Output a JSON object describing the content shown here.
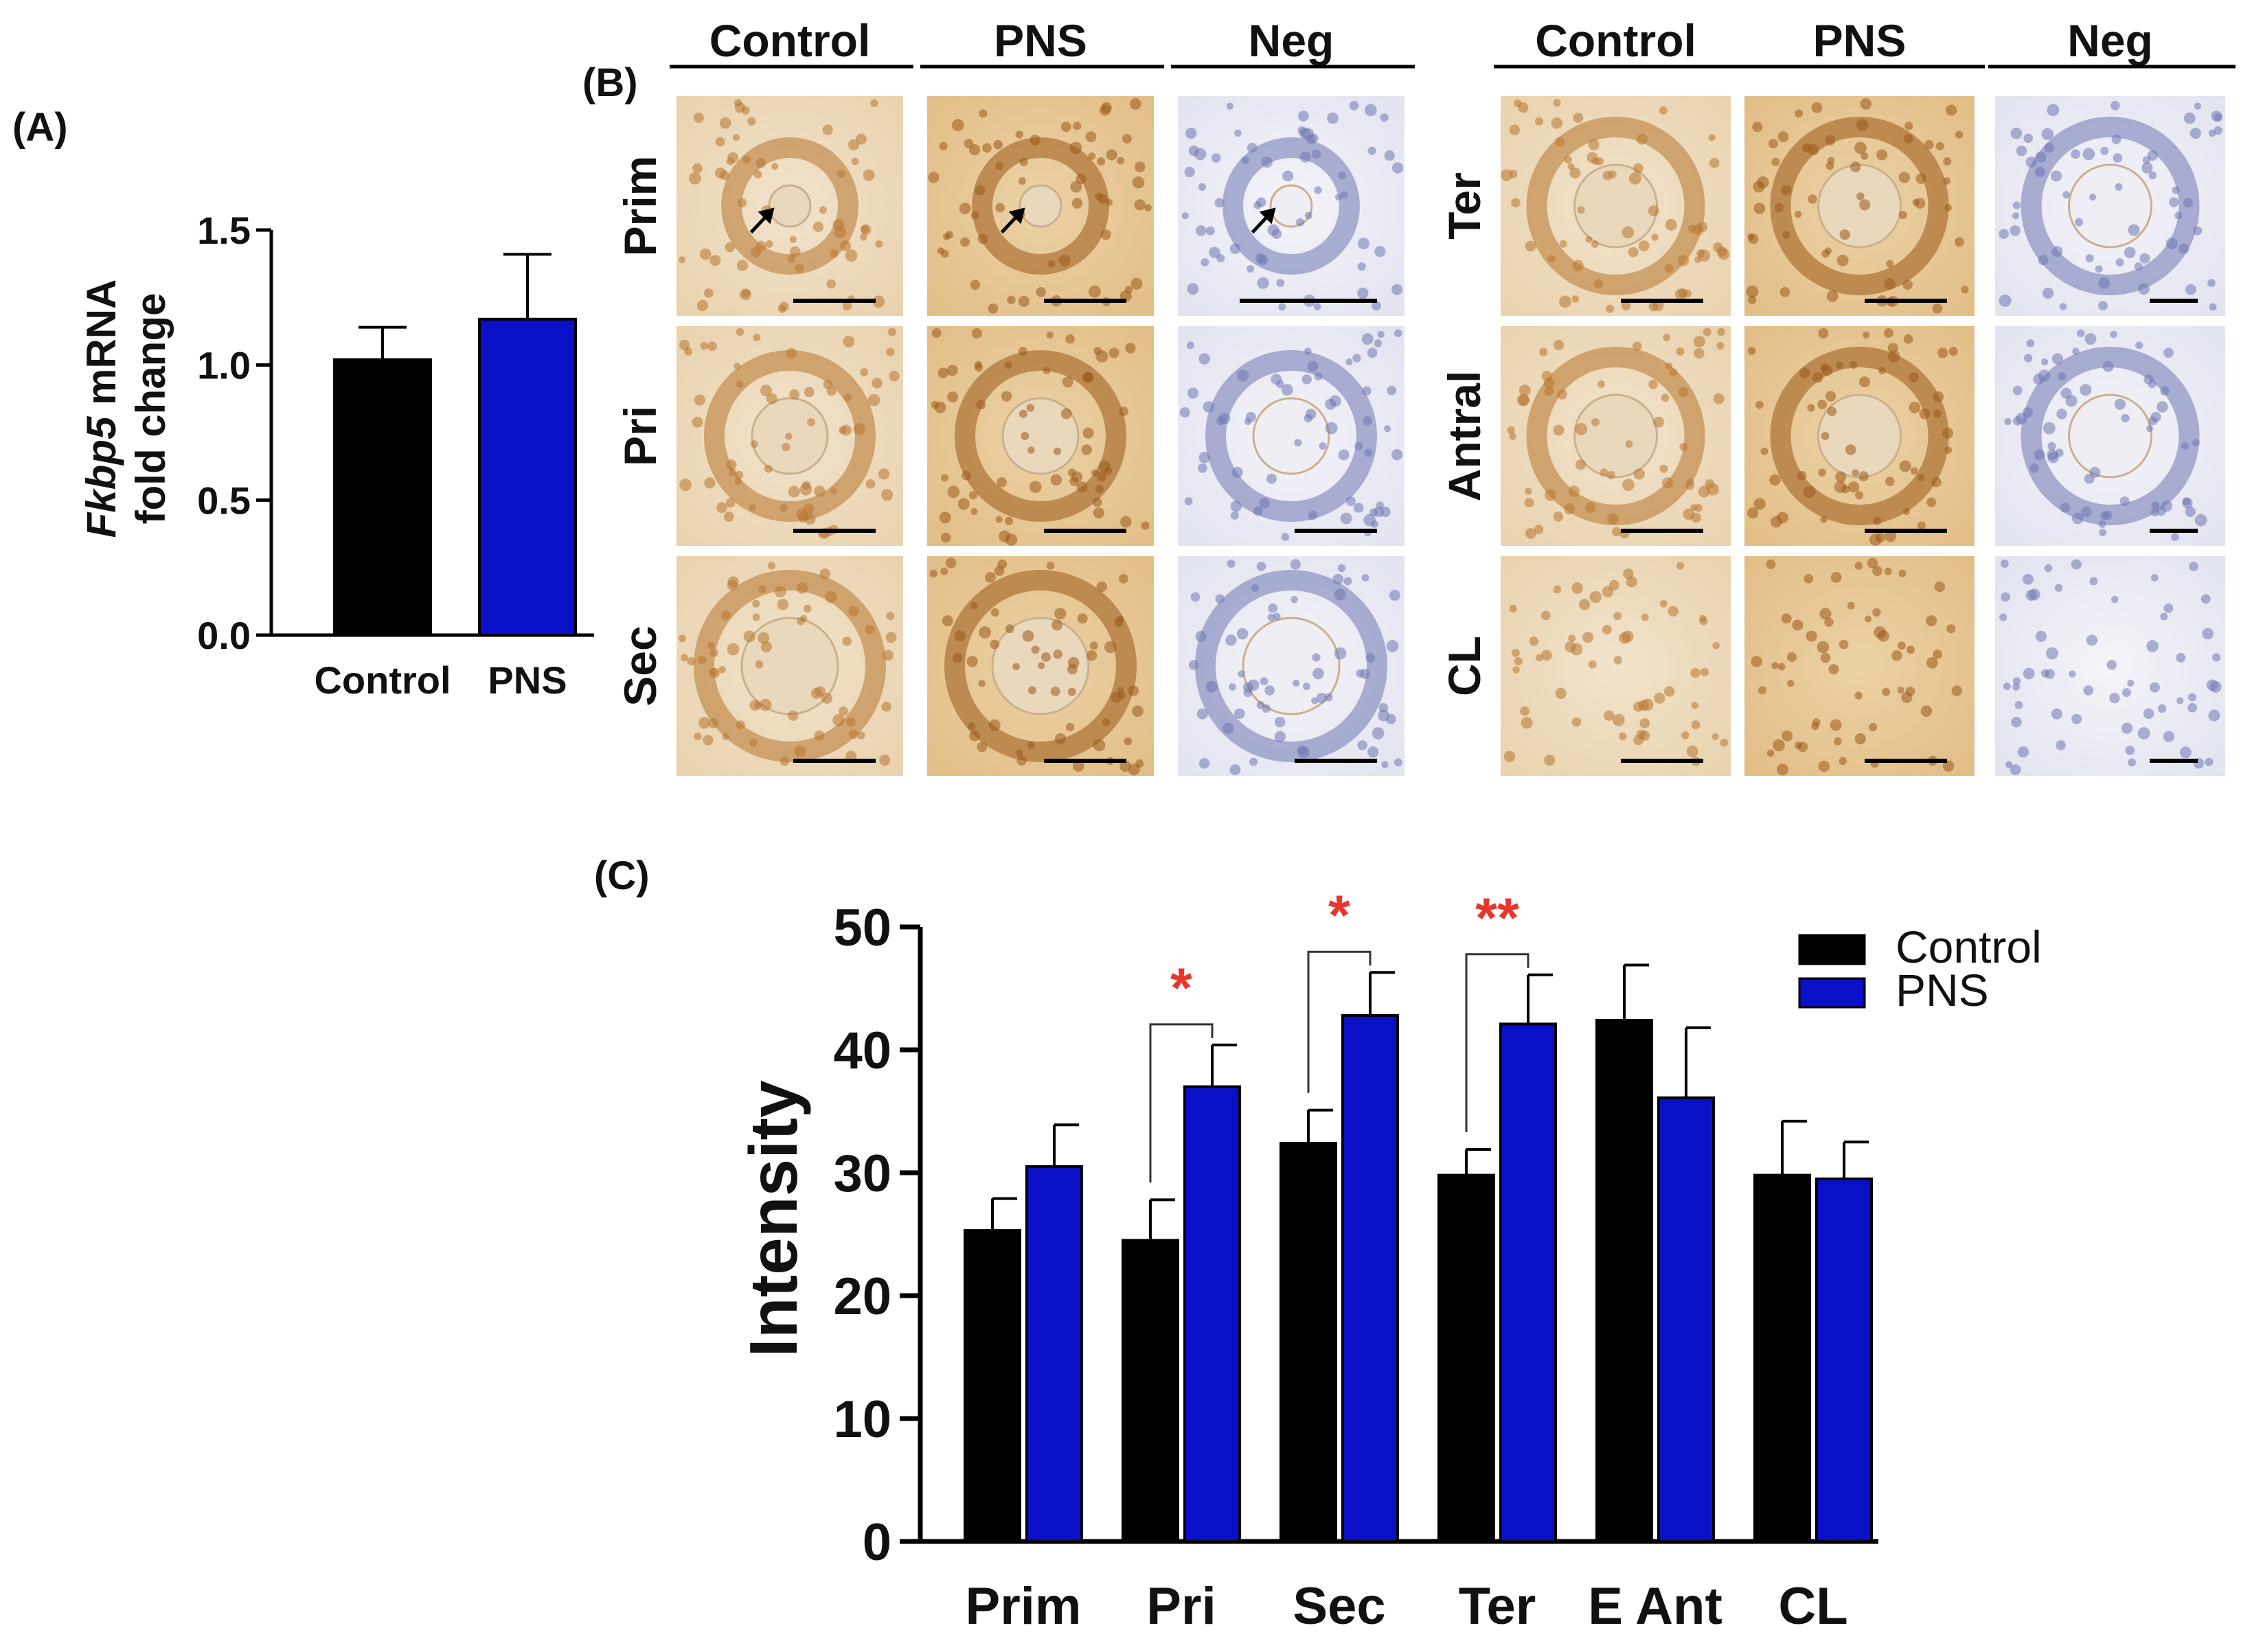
{
  "panels": {
    "a_label": "(A)",
    "b_label": "(B)",
    "c_label": "(C)"
  },
  "colors": {
    "control": "#000000",
    "pns": "#0a10c8",
    "significance": "#e8362c"
  },
  "chart_data": [
    {
      "id": "A",
      "type": "bar",
      "ylabel_italic": "Fkbp5",
      "ylabel_rest": " mRNA",
      "ylabel_line2": "fold change",
      "categories": [
        "Control",
        "PNS"
      ],
      "values": [
        1.02,
        1.17
      ],
      "errors": [
        0.12,
        0.24
      ],
      "ylim": [
        0,
        1.5
      ],
      "yticks": [
        "0.0",
        "0.5",
        "1.0",
        "1.5"
      ],
      "ytick_values": [
        0,
        0.5,
        1.0,
        1.5
      ]
    },
    {
      "id": "C",
      "type": "bar",
      "ylabel": "Intensity",
      "categories": [
        "Prim",
        "Pri",
        "Sec",
        "Ter",
        "E Ant",
        "CL"
      ],
      "series": [
        {
          "name": "Control",
          "values": [
            25.3,
            24.5,
            32.4,
            29.8,
            42.4,
            29.8
          ],
          "errors": [
            2.6,
            3.3,
            2.7,
            2.1,
            4.5,
            4.4
          ]
        },
        {
          "name": "PNS",
          "values": [
            30.5,
            37.0,
            42.8,
            42.1,
            36.1,
            29.5
          ],
          "errors": [
            3.4,
            3.4,
            3.5,
            4.0,
            5.7,
            3.0
          ]
        }
      ],
      "ylim": [
        0,
        50
      ],
      "yticks": [
        "0",
        "10",
        "20",
        "30",
        "40",
        "50"
      ],
      "ytick_values": [
        0,
        10,
        20,
        30,
        40,
        50
      ],
      "significance": [
        {
          "category": "Pri",
          "label": "*"
        },
        {
          "category": "Sec",
          "label": "*"
        },
        {
          "category": "Ter",
          "label": "**"
        }
      ],
      "legend_position": "top-right"
    }
  ],
  "micrographs": {
    "left_columns": [
      "Control",
      "PNS",
      "Neg"
    ],
    "left_rows": [
      "Prim",
      "Pri",
      "Sec"
    ],
    "right_columns": [
      "Control",
      "PNS",
      "Neg"
    ],
    "right_rows": [
      "Ter",
      "Antral",
      "CL"
    ],
    "tiles": {
      "Prim": [
        "control",
        "pns",
        "neg"
      ],
      "Pri": [
        "control",
        "pns",
        "neg"
      ],
      "Sec": [
        "control",
        "pns",
        "neg"
      ],
      "Ter": [
        "control",
        "pns",
        "neg"
      ],
      "Antral": [
        "control",
        "pns",
        "neg"
      ],
      "CL": [
        "control",
        "pns",
        "neg"
      ]
    }
  }
}
